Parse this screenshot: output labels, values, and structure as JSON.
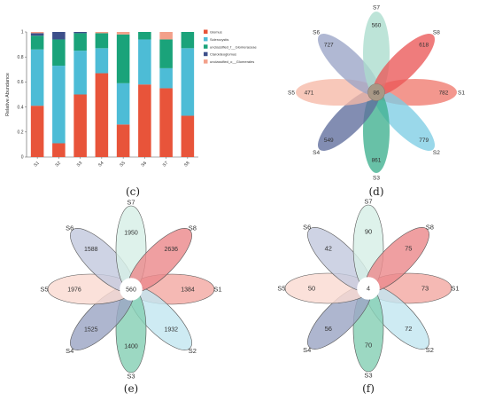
{
  "chart_data": [
    {
      "type": "bar",
      "panel": "(c)",
      "stacked": true,
      "ylabel": "Relative Abundance",
      "ylim": [
        0,
        1
      ],
      "yticks": [
        "0",
        "0.2",
        "0.4",
        "0.6",
        "0.8",
        "1"
      ],
      "categories": [
        "S1",
        "S2",
        "S3",
        "S4",
        "S5",
        "S6",
        "S7",
        "S8"
      ],
      "series": [
        {
          "name": "Glomus",
          "color": "#e8543a",
          "values": [
            0.41,
            0.11,
            0.5,
            0.67,
            0.26,
            0.58,
            0.55,
            0.33
          ]
        },
        {
          "name": "Sclerocystis",
          "color": "#4dbcd6",
          "values": [
            0.45,
            0.62,
            0.35,
            0.2,
            0.33,
            0.36,
            0.16,
            0.54
          ]
        },
        {
          "name": "unclassified_f__Glomeraceae",
          "color": "#1aa37a",
          "values": [
            0.11,
            0.21,
            0.14,
            0.12,
            0.39,
            0.06,
            0.23,
            0.13
          ]
        },
        {
          "name": "Claroideoglomus",
          "color": "#3d4f8a",
          "values": [
            0.02,
            0.06,
            0.01,
            0.0,
            0.0,
            0.0,
            0.0,
            0.0
          ]
        },
        {
          "name": "unclassified_o__Glomerales",
          "color": "#f3a08a",
          "values": [
            0.01,
            0.0,
            0.0,
            0.01,
            0.02,
            0.0,
            0.06,
            0.0
          ]
        }
      ],
      "legend": "top-right"
    },
    {
      "type": "flower-venn",
      "panel": "(d)",
      "core": 86,
      "petals": [
        {
          "label": "S1",
          "value": 782,
          "color": "#ef7a6e"
        },
        {
          "label": "S2",
          "value": 779,
          "color": "#7ecde4"
        },
        {
          "label": "S3",
          "value": 861,
          "color": "#3db08e"
        },
        {
          "label": "S4",
          "value": 549,
          "color": "#5f6d9c"
        },
        {
          "label": "S5",
          "value": 471,
          "color": "#f6b9a6"
        },
        {
          "label": "S6",
          "value": 727,
          "color": "#9aa4c6"
        },
        {
          "label": "S7",
          "value": 560,
          "color": "#aadccd"
        },
        {
          "label": "S8",
          "value": 618,
          "color": "#ea5757"
        }
      ]
    },
    {
      "type": "flower-venn",
      "panel": "(e)",
      "core": 560,
      "petals": [
        {
          "label": "S1",
          "value": 1384,
          "color": "#f3a9a3"
        },
        {
          "label": "S2",
          "value": 1932,
          "color": "#c3e6f0"
        },
        {
          "label": "S3",
          "value": 1400,
          "color": "#86cfb4"
        },
        {
          "label": "S4",
          "value": 1525,
          "color": "#9ca6c4"
        },
        {
          "label": "S5",
          "value": 1976,
          "color": "#fadbd2"
        },
        {
          "label": "S6",
          "value": 1588,
          "color": "#c3c9de"
        },
        {
          "label": "S7",
          "value": 1950,
          "color": "#d7efe6"
        },
        {
          "label": "S8",
          "value": 2636,
          "color": "#ec8a8c"
        }
      ]
    },
    {
      "type": "flower-venn",
      "panel": "(f)",
      "core": 4,
      "petals": [
        {
          "label": "S1",
          "value": 73,
          "color": "#f3a9a3"
        },
        {
          "label": "S2",
          "value": 72,
          "color": "#c3e6f0"
        },
        {
          "label": "S3",
          "value": 70,
          "color": "#86cfb4"
        },
        {
          "label": "S4",
          "value": 56,
          "color": "#9ca6c4"
        },
        {
          "label": "S5",
          "value": 50,
          "color": "#fadbd2"
        },
        {
          "label": "S6",
          "value": 42,
          "color": "#c3c9de"
        },
        {
          "label": "S7",
          "value": 90,
          "color": "#d7efe6"
        },
        {
          "label": "S8",
          "value": 75,
          "color": "#ec8a8c"
        }
      ]
    }
  ],
  "captions": [
    "(c)",
    "(d)",
    "(e)",
    "(f)"
  ]
}
